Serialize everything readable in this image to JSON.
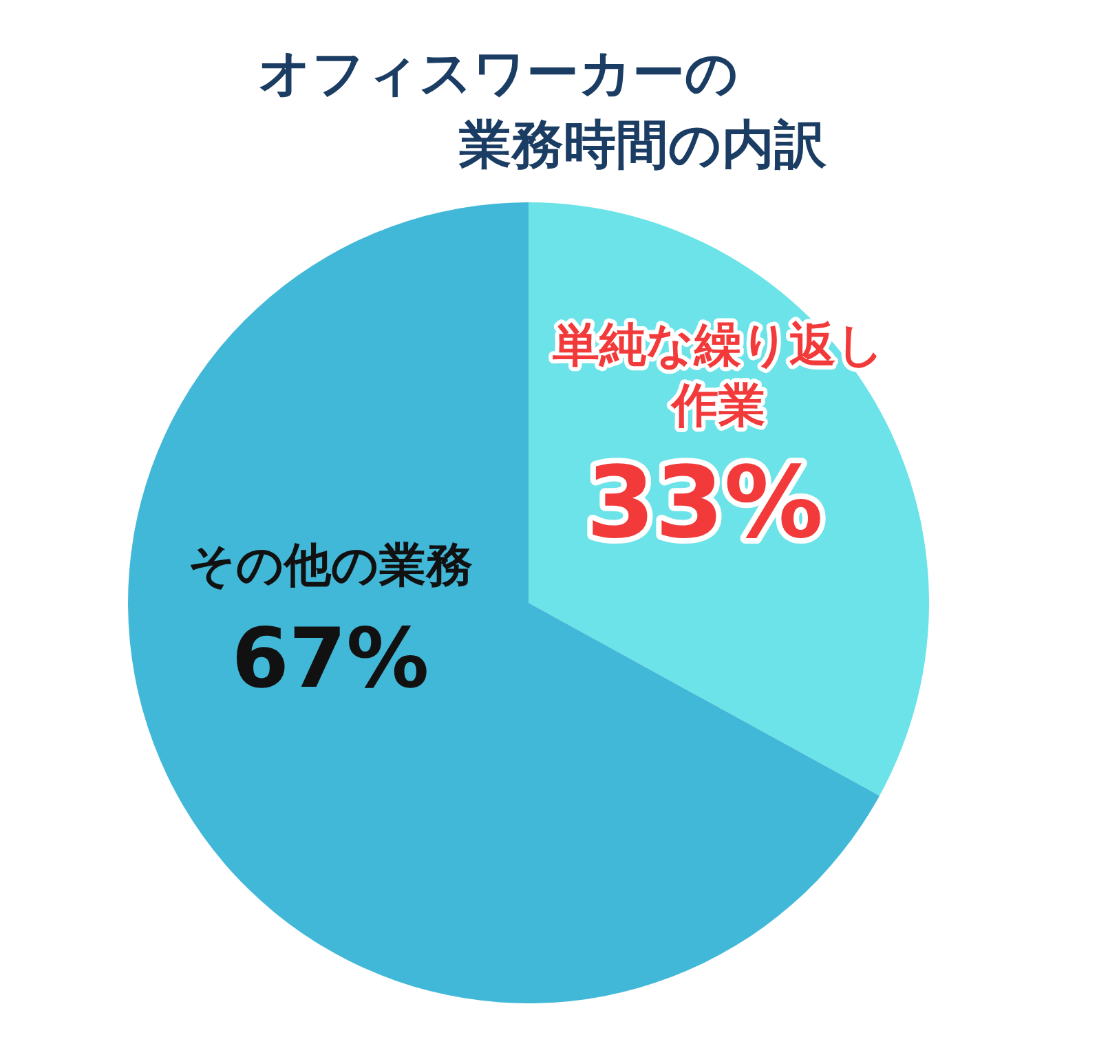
{
  "chart_data": {
    "type": "pie",
    "title": "オフィスワーカーの業務時間の内訳",
    "categories": [
      "単純な繰り返し作業",
      "その他の業務"
    ],
    "values": [
      33,
      67
    ],
    "colors": [
      "#6ce3e8",
      "#42b8d8"
    ],
    "value_labels": [
      "33%",
      "67%"
    ]
  }
}
